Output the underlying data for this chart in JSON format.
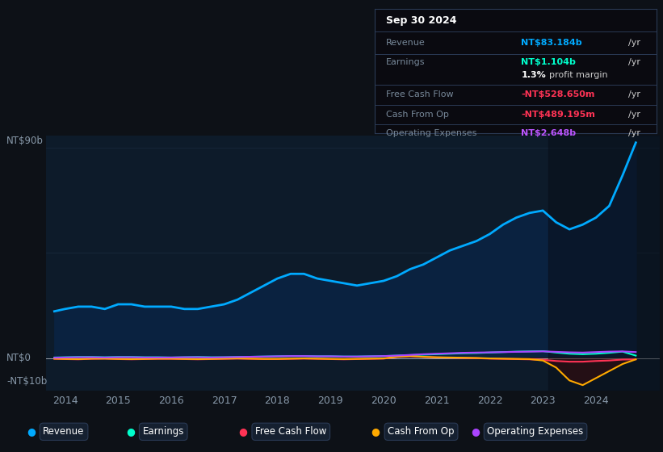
{
  "bg_color": "#0d1117",
  "plot_bg_color": "#0d1b2a",
  "grid_color": "#263850",
  "text_color": "#8899aa",
  "ylim": [
    -14,
    95
  ],
  "revenue_color": "#00aaff",
  "earnings_color": "#00ffcc",
  "fcf_color": "#ff3355",
  "cashop_color": "#ffaa00",
  "opex_color": "#aa44ff",
  "revenue_fill_color": "#0a2240",
  "cashop_fill_neg_color": "#4a1010",
  "tooltip_bg": "#0a0a10",
  "tooltip_border": "#2a3a55",
  "label_color": "#778899",
  "revenue_val_color": "#00aaff",
  "earnings_val_color": "#00ffcc",
  "fcf_val_color": "#ff3355",
  "cashop_val_color": "#ff3355",
  "opex_val_color": "#bb55ff",
  "x_ticks": [
    2014,
    2015,
    2016,
    2017,
    2018,
    2019,
    2020,
    2021,
    2022,
    2023,
    2024
  ],
  "legend": [
    {
      "label": "Revenue",
      "color": "#00aaff"
    },
    {
      "label": "Earnings",
      "color": "#00ffcc"
    },
    {
      "label": "Free Cash Flow",
      "color": "#ff3355"
    },
    {
      "label": "Cash From Op",
      "color": "#ffaa00"
    },
    {
      "label": "Operating Expenses",
      "color": "#aa44ff"
    }
  ],
  "years": [
    2013.8,
    2014.0,
    2014.25,
    2014.5,
    2014.75,
    2015.0,
    2015.25,
    2015.5,
    2015.75,
    2016.0,
    2016.25,
    2016.5,
    2016.75,
    2017.0,
    2017.25,
    2017.5,
    2017.75,
    2018.0,
    2018.25,
    2018.5,
    2018.75,
    2019.0,
    2019.25,
    2019.5,
    2019.75,
    2020.0,
    2020.25,
    2020.5,
    2020.75,
    2021.0,
    2021.25,
    2021.5,
    2021.75,
    2022.0,
    2022.25,
    2022.5,
    2022.75,
    2023.0,
    2023.25,
    2023.5,
    2023.75,
    2024.0,
    2024.25,
    2024.5,
    2024.75
  ],
  "revenue": [
    20,
    21,
    22,
    22,
    21,
    23,
    23,
    22,
    22,
    22,
    21,
    21,
    22,
    23,
    25,
    28,
    31,
    34,
    36,
    36,
    34,
    33,
    32,
    31,
    32,
    33,
    35,
    38,
    40,
    43,
    46,
    48,
    50,
    53,
    57,
    60,
    62,
    63,
    58,
    55,
    57,
    60,
    65,
    78,
    92
  ],
  "earnings": [
    0.3,
    0.4,
    0.5,
    0.5,
    0.4,
    0.5,
    0.5,
    0.4,
    0.4,
    0.3,
    0.4,
    0.5,
    0.4,
    0.4,
    0.5,
    0.6,
    0.7,
    0.8,
    0.9,
    0.9,
    0.8,
    0.8,
    0.7,
    0.7,
    0.8,
    0.9,
    1.1,
    1.3,
    1.5,
    1.7,
    1.9,
    2.1,
    2.2,
    2.4,
    2.6,
    2.8,
    2.9,
    3.0,
    2.4,
    1.9,
    1.7,
    1.9,
    2.3,
    2.8,
    1.1
  ],
  "fcf": [
    -0.3,
    -0.4,
    -0.5,
    -0.3,
    -0.2,
    -0.4,
    -0.5,
    -0.4,
    -0.3,
    -0.3,
    -0.4,
    -0.5,
    -0.4,
    -0.3,
    -0.2,
    -0.3,
    -0.4,
    -0.4,
    -0.3,
    -0.2,
    -0.3,
    -0.4,
    -0.5,
    -0.4,
    -0.3,
    -0.2,
    0.5,
    0.8,
    0.5,
    0.3,
    0.2,
    0.1,
    0.0,
    -0.2,
    -0.3,
    -0.4,
    -0.5,
    -0.7,
    -1.2,
    -1.5,
    -1.5,
    -1.2,
    -1.0,
    -0.6,
    -0.5
  ],
  "cashop": [
    -0.2,
    -0.3,
    -0.4,
    -0.2,
    -0.2,
    -0.3,
    -0.4,
    -0.3,
    -0.2,
    -0.2,
    -0.3,
    -0.4,
    -0.3,
    -0.2,
    -0.1,
    -0.2,
    -0.3,
    -0.3,
    -0.2,
    -0.1,
    -0.2,
    -0.3,
    -0.4,
    -0.3,
    -0.2,
    -0.1,
    0.6,
    0.9,
    0.6,
    0.4,
    0.3,
    0.2,
    0.1,
    -0.1,
    -0.2,
    -0.3,
    -0.4,
    -1.0,
    -4.0,
    -9.5,
    -11.5,
    -8.5,
    -5.5,
    -2.5,
    -0.5
  ],
  "opex": [
    0.2,
    0.3,
    0.4,
    0.4,
    0.3,
    0.4,
    0.4,
    0.3,
    0.3,
    0.3,
    0.4,
    0.4,
    0.3,
    0.4,
    0.5,
    0.6,
    0.7,
    0.8,
    0.9,
    0.9,
    0.8,
    0.8,
    0.7,
    0.7,
    0.8,
    0.9,
    1.1,
    1.4,
    1.7,
    1.9,
    2.1,
    2.3,
    2.4,
    2.5,
    2.6,
    2.7,
    2.8,
    2.9,
    2.7,
    2.5,
    2.4,
    2.6,
    2.8,
    2.9,
    2.6
  ]
}
